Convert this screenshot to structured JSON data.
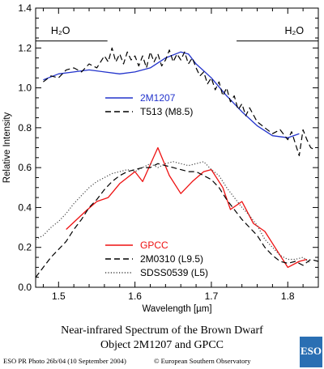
{
  "chart_data": {
    "type": "line",
    "xlabel": "Wavelength [µm]",
    "ylabel": "Relative Intensity",
    "xlim": [
      1.47,
      1.84
    ],
    "ylim": [
      0.0,
      1.4
    ],
    "x_ticks": [
      "1.5",
      "1.6",
      "1.7",
      "1.8"
    ],
    "x_tick_values": [
      1.5,
      1.6,
      1.7,
      1.8
    ],
    "y_ticks": [
      "0.0",
      "0.2",
      "0.4",
      "0.6",
      "0.8",
      "1.0",
      "1.2",
      "1.4"
    ],
    "y_tick_values": [
      0.0,
      0.2,
      0.4,
      0.6,
      0.8,
      1.0,
      1.2,
      1.4
    ],
    "grid": false,
    "annotations": [
      {
        "text": "H₂O",
        "x": 1.49,
        "y": 1.27,
        "bar": [
          1.47,
          1.564
        ],
        "bar_y": 1.235
      },
      {
        "text": "H₂O",
        "x": 1.796,
        "y": 1.27,
        "bar": [
          1.733,
          1.84
        ],
        "bar_y": 1.235
      }
    ],
    "legends": [
      {
        "entries": [
          {
            "label": "2M1207",
            "color": "#2233cc",
            "style": "solid"
          },
          {
            "label": "T513 (M8.5)",
            "color": "#000000",
            "style": "dashed"
          }
        ]
      },
      {
        "entries": [
          {
            "label": "GPCC",
            "color": "#ee1111",
            "style": "solid"
          },
          {
            "label": "2M0310 (L9.5)",
            "color": "#000000",
            "style": "dashed"
          },
          {
            "label": "SDSS0539 (L5)",
            "color": "#444444",
            "style": "dotted"
          }
        ]
      }
    ],
    "series": [
      {
        "name": "2M1207",
        "color": "#2233cc",
        "style": "solid",
        "x": [
          1.48,
          1.5,
          1.52,
          1.54,
          1.56,
          1.58,
          1.6,
          1.62,
          1.64,
          1.66,
          1.67,
          1.68,
          1.7,
          1.72,
          1.74,
          1.76,
          1.78,
          1.8,
          1.815
        ],
        "y": [
          1.04,
          1.07,
          1.08,
          1.09,
          1.08,
          1.07,
          1.08,
          1.1,
          1.15,
          1.18,
          1.17,
          1.12,
          1.05,
          0.96,
          0.88,
          0.81,
          0.76,
          0.75,
          0.77
        ]
      },
      {
        "name": "T513 (M8.5)",
        "color": "#000000",
        "style": "dashed",
        "x": [
          1.48,
          1.49,
          1.5,
          1.51,
          1.52,
          1.53,
          1.54,
          1.55,
          1.56,
          1.565,
          1.57,
          1.575,
          1.58,
          1.585,
          1.59,
          1.595,
          1.6,
          1.605,
          1.61,
          1.615,
          1.62,
          1.625,
          1.63,
          1.635,
          1.64,
          1.645,
          1.65,
          1.655,
          1.66,
          1.665,
          1.67,
          1.675,
          1.68,
          1.685,
          1.69,
          1.695,
          1.7,
          1.705,
          1.71,
          1.715,
          1.72,
          1.725,
          1.73,
          1.735,
          1.74,
          1.745,
          1.75,
          1.76,
          1.77,
          1.78,
          1.79,
          1.8,
          1.805,
          1.81,
          1.815,
          1.82,
          1.825,
          1.83,
          1.835
        ],
        "y": [
          1.03,
          1.06,
          1.05,
          1.09,
          1.1,
          1.08,
          1.12,
          1.1,
          1.16,
          1.13,
          1.2,
          1.13,
          1.17,
          1.12,
          1.18,
          1.14,
          1.16,
          1.11,
          1.16,
          1.1,
          1.18,
          1.13,
          1.17,
          1.11,
          1.14,
          1.19,
          1.13,
          1.17,
          1.14,
          1.18,
          1.12,
          1.15,
          1.1,
          1.06,
          1.08,
          1.02,
          1.05,
          0.99,
          1.03,
          0.96,
          1.0,
          0.93,
          0.96,
          0.89,
          0.92,
          0.86,
          0.9,
          0.83,
          0.8,
          0.77,
          0.79,
          0.74,
          0.78,
          0.72,
          0.66,
          0.79,
          0.74,
          0.7,
          0.69
        ]
      },
      {
        "name": "GPCC",
        "color": "#ee1111",
        "style": "solid",
        "x": [
          1.51,
          1.535,
          1.55,
          1.565,
          1.58,
          1.6,
          1.61,
          1.63,
          1.645,
          1.66,
          1.675,
          1.69,
          1.7,
          1.715,
          1.725,
          1.74,
          1.755,
          1.77,
          1.785,
          1.8,
          1.815,
          1.825
        ],
        "y": [
          0.29,
          0.38,
          0.43,
          0.45,
          0.52,
          0.58,
          0.53,
          0.7,
          0.56,
          0.47,
          0.53,
          0.58,
          0.59,
          0.5,
          0.39,
          0.43,
          0.32,
          0.28,
          0.19,
          0.1,
          0.13,
          0.14
        ]
      },
      {
        "name": "2M0310 (L9.5)",
        "color": "#000000",
        "style": "dashed",
        "x": [
          1.47,
          1.48,
          1.49,
          1.5,
          1.51,
          1.52,
          1.53,
          1.54,
          1.55,
          1.56,
          1.57,
          1.58,
          1.59,
          1.6,
          1.61,
          1.62,
          1.63,
          1.64,
          1.65,
          1.66,
          1.67,
          1.68,
          1.69,
          1.7,
          1.71,
          1.72,
          1.73,
          1.74,
          1.75,
          1.76,
          1.77,
          1.78,
          1.79,
          1.8,
          1.81,
          1.82,
          1.83,
          1.84
        ],
        "y": [
          0.05,
          0.1,
          0.15,
          0.19,
          0.23,
          0.29,
          0.34,
          0.4,
          0.44,
          0.49,
          0.53,
          0.56,
          0.58,
          0.59,
          0.6,
          0.6,
          0.62,
          0.61,
          0.6,
          0.59,
          0.58,
          0.58,
          0.56,
          0.54,
          0.5,
          0.44,
          0.39,
          0.34,
          0.3,
          0.26,
          0.2,
          0.16,
          0.13,
          0.12,
          0.13,
          0.11,
          0.14,
          0.13
        ]
      },
      {
        "name": "SDSS0539 (L5)",
        "color": "#444444",
        "style": "dotted",
        "x": [
          1.47,
          1.48,
          1.49,
          1.5,
          1.51,
          1.52,
          1.53,
          1.54,
          1.55,
          1.56,
          1.57,
          1.58,
          1.59,
          1.6,
          1.61,
          1.62,
          1.63,
          1.64,
          1.65,
          1.66,
          1.67,
          1.68,
          1.69,
          1.7,
          1.71,
          1.72,
          1.73,
          1.74,
          1.75,
          1.76,
          1.77,
          1.78,
          1.79,
          1.8,
          1.81,
          1.82,
          1.83
        ],
        "y": [
          0.24,
          0.26,
          0.3,
          0.33,
          0.37,
          0.42,
          0.46,
          0.5,
          0.53,
          0.55,
          0.57,
          0.58,
          0.59,
          0.58,
          0.6,
          0.62,
          0.6,
          0.62,
          0.63,
          0.62,
          0.61,
          0.62,
          0.63,
          0.59,
          0.56,
          0.5,
          0.45,
          0.4,
          0.36,
          0.31,
          0.24,
          0.2,
          0.16,
          0.14,
          0.14,
          0.15,
          0.12
        ]
      }
    ]
  },
  "caption": {
    "line1": "Near-infrared Spectrum of the Brown Dwarf",
    "line2": "Object 2M1207 and GPCC"
  },
  "footer": {
    "left": "ESO PR Photo 26b/04 (10 September 2004)",
    "right": "© European Southern Observatory"
  },
  "logo": {
    "text": "ESO",
    "color": "#2a6fb3"
  }
}
